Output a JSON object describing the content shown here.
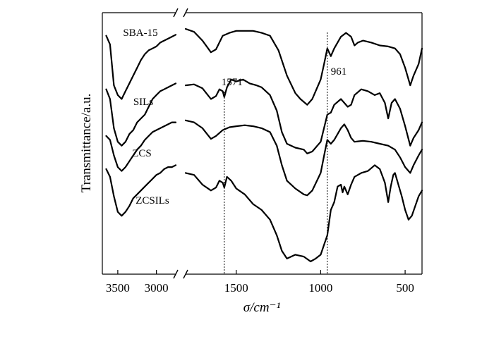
{
  "chart_data": {
    "type": "line",
    "title": "",
    "xlabel": "σ/cm⁻¹",
    "ylabel": "Transmittance/a.u.",
    "x_reversed": true,
    "x_axis_break": true,
    "yticks_shown": false,
    "grid": false,
    "legend": "none (series labelled inline)",
    "x_segments": [
      {
        "range": [
          3700,
          2750
        ],
        "ticks": [
          "3500",
          "3000"
        ]
      },
      {
        "range": [
          1800,
          400
        ],
        "ticks": [
          "1500",
          "1000",
          "500"
        ]
      }
    ],
    "annotations": [
      {
        "text": "1571",
        "x": 1571
      },
      {
        "text": "961",
        "x": 961
      }
    ],
    "series": [
      {
        "name": "SBA-15",
        "points": [
          [
            3650,
            0.925
          ],
          [
            3600,
            0.88
          ],
          [
            3550,
            0.67
          ],
          [
            3500,
            0.62
          ],
          [
            3450,
            0.6
          ],
          [
            3400,
            0.64
          ],
          [
            3350,
            0.68
          ],
          [
            3300,
            0.72
          ],
          [
            3250,
            0.76
          ],
          [
            3200,
            0.8
          ],
          [
            3150,
            0.83
          ],
          [
            3100,
            0.85
          ],
          [
            3050,
            0.86
          ],
          [
            3000,
            0.87
          ],
          [
            2950,
            0.89
          ],
          [
            2900,
            0.9
          ],
          [
            2850,
            0.91
          ],
          [
            2800,
            0.92
          ],
          [
            2750,
            0.93
          ],
          [
            1800,
            0.96
          ],
          [
            1750,
            0.945
          ],
          [
            1700,
            0.9
          ],
          [
            1650,
            0.84
          ],
          [
            1620,
            0.855
          ],
          [
            1580,
            0.925
          ],
          [
            1540,
            0.94
          ],
          [
            1500,
            0.95
          ],
          [
            1450,
            0.95
          ],
          [
            1400,
            0.95
          ],
          [
            1350,
            0.94
          ],
          [
            1300,
            0.925
          ],
          [
            1250,
            0.85
          ],
          [
            1200,
            0.72
          ],
          [
            1150,
            0.63
          ],
          [
            1120,
            0.6
          ],
          [
            1080,
            0.57
          ],
          [
            1050,
            0.6
          ],
          [
            1000,
            0.7
          ],
          [
            980,
            0.78
          ],
          [
            961,
            0.86
          ],
          [
            940,
            0.82
          ],
          [
            920,
            0.86
          ],
          [
            880,
            0.92
          ],
          [
            850,
            0.94
          ],
          [
            820,
            0.92
          ],
          [
            800,
            0.875
          ],
          [
            780,
            0.89
          ],
          [
            750,
            0.9
          ],
          [
            700,
            0.89
          ],
          [
            650,
            0.875
          ],
          [
            600,
            0.87
          ],
          [
            560,
            0.86
          ],
          [
            530,
            0.83
          ],
          [
            500,
            0.76
          ],
          [
            470,
            0.67
          ],
          [
            450,
            0.72
          ],
          [
            420,
            0.78
          ],
          [
            400,
            0.86
          ]
        ]
      },
      {
        "name": "SILs",
        "points": [
          [
            3650,
            0.65
          ],
          [
            3600,
            0.6
          ],
          [
            3550,
            0.45
          ],
          [
            3500,
            0.38
          ],
          [
            3450,
            0.36
          ],
          [
            3400,
            0.38
          ],
          [
            3350,
            0.42
          ],
          [
            3300,
            0.44
          ],
          [
            3250,
            0.48
          ],
          [
            3200,
            0.5
          ],
          [
            3150,
            0.52
          ],
          [
            3100,
            0.56
          ],
          [
            3050,
            0.6
          ],
          [
            3000,
            0.62
          ],
          [
            2950,
            0.64
          ],
          [
            2900,
            0.65
          ],
          [
            2850,
            0.66
          ],
          [
            2800,
            0.67
          ],
          [
            2750,
            0.68
          ],
          [
            1800,
            0.67
          ],
          [
            1750,
            0.675
          ],
          [
            1700,
            0.655
          ],
          [
            1650,
            0.6
          ],
          [
            1620,
            0.615
          ],
          [
            1600,
            0.65
          ],
          [
            1580,
            0.64
          ],
          [
            1571,
            0.61
          ],
          [
            1555,
            0.66
          ],
          [
            1530,
            0.7
          ],
          [
            1500,
            0.69
          ],
          [
            1460,
            0.7
          ],
          [
            1420,
            0.68
          ],
          [
            1380,
            0.67
          ],
          [
            1350,
            0.66
          ],
          [
            1300,
            0.62
          ],
          [
            1260,
            0.54
          ],
          [
            1230,
            0.43
          ],
          [
            1200,
            0.37
          ],
          [
            1150,
            0.35
          ],
          [
            1100,
            0.34
          ],
          [
            1080,
            0.32
          ],
          [
            1050,
            0.33
          ],
          [
            1000,
            0.38
          ],
          [
            961,
            0.52
          ],
          [
            940,
            0.53
          ],
          [
            920,
            0.57
          ],
          [
            880,
            0.6
          ],
          [
            860,
            0.58
          ],
          [
            840,
            0.56
          ],
          [
            820,
            0.57
          ],
          [
            800,
            0.62
          ],
          [
            760,
            0.65
          ],
          [
            720,
            0.64
          ],
          [
            680,
            0.62
          ],
          [
            650,
            0.63
          ],
          [
            620,
            0.58
          ],
          [
            600,
            0.5
          ],
          [
            580,
            0.58
          ],
          [
            560,
            0.6
          ],
          [
            530,
            0.55
          ],
          [
            500,
            0.46
          ],
          [
            470,
            0.36
          ],
          [
            450,
            0.4
          ],
          [
            420,
            0.44
          ],
          [
            400,
            0.48
          ]
        ]
      },
      {
        "name": "ZCS",
        "points": [
          [
            3650,
            0.41
          ],
          [
            3600,
            0.39
          ],
          [
            3550,
            0.31
          ],
          [
            3500,
            0.25
          ],
          [
            3450,
            0.23
          ],
          [
            3400,
            0.25
          ],
          [
            3350,
            0.28
          ],
          [
            3300,
            0.31
          ],
          [
            3250,
            0.34
          ],
          [
            3200,
            0.36
          ],
          [
            3150,
            0.39
          ],
          [
            3100,
            0.41
          ],
          [
            3050,
            0.43
          ],
          [
            3000,
            0.44
          ],
          [
            2950,
            0.45
          ],
          [
            2900,
            0.46
          ],
          [
            2850,
            0.47
          ],
          [
            2800,
            0.48
          ],
          [
            2750,
            0.48
          ],
          [
            1800,
            0.49
          ],
          [
            1750,
            0.48
          ],
          [
            1700,
            0.45
          ],
          [
            1650,
            0.395
          ],
          [
            1620,
            0.41
          ],
          [
            1580,
            0.44
          ],
          [
            1540,
            0.455
          ],
          [
            1500,
            0.46
          ],
          [
            1450,
            0.465
          ],
          [
            1400,
            0.46
          ],
          [
            1350,
            0.45
          ],
          [
            1300,
            0.43
          ],
          [
            1260,
            0.36
          ],
          [
            1230,
            0.26
          ],
          [
            1200,
            0.18
          ],
          [
            1150,
            0.14
          ],
          [
            1100,
            0.11
          ],
          [
            1080,
            0.105
          ],
          [
            1050,
            0.13
          ],
          [
            1000,
            0.22
          ],
          [
            975,
            0.33
          ],
          [
            961,
            0.39
          ],
          [
            940,
            0.37
          ],
          [
            920,
            0.39
          ],
          [
            880,
            0.45
          ],
          [
            860,
            0.47
          ],
          [
            840,
            0.44
          ],
          [
            820,
            0.4
          ],
          [
            800,
            0.38
          ],
          [
            750,
            0.385
          ],
          [
            700,
            0.38
          ],
          [
            650,
            0.37
          ],
          [
            600,
            0.36
          ],
          [
            560,
            0.34
          ],
          [
            530,
            0.3
          ],
          [
            500,
            0.25
          ],
          [
            470,
            0.22
          ],
          [
            450,
            0.26
          ],
          [
            420,
            0.31
          ],
          [
            400,
            0.34
          ]
        ]
      },
      {
        "name": "ZCSILs",
        "points": [
          [
            3650,
            0.24
          ],
          [
            3600,
            0.2
          ],
          [
            3550,
            0.1
          ],
          [
            3500,
            0.02
          ],
          [
            3450,
            0.0
          ],
          [
            3400,
            0.02
          ],
          [
            3350,
            0.05
          ],
          [
            3300,
            0.09
          ],
          [
            3250,
            0.11
          ],
          [
            3200,
            0.13
          ],
          [
            3150,
            0.15
          ],
          [
            3100,
            0.17
          ],
          [
            3050,
            0.19
          ],
          [
            3000,
            0.21
          ],
          [
            2950,
            0.22
          ],
          [
            2900,
            0.24
          ],
          [
            2850,
            0.25
          ],
          [
            2800,
            0.25
          ],
          [
            2750,
            0.26
          ],
          [
            1800,
            0.22
          ],
          [
            1750,
            0.21
          ],
          [
            1700,
            0.16
          ],
          [
            1650,
            0.13
          ],
          [
            1620,
            0.145
          ],
          [
            1600,
            0.18
          ],
          [
            1580,
            0.17
          ],
          [
            1571,
            0.145
          ],
          [
            1555,
            0.2
          ],
          [
            1530,
            0.18
          ],
          [
            1500,
            0.14
          ],
          [
            1450,
            0.11
          ],
          [
            1400,
            0.06
          ],
          [
            1350,
            0.03
          ],
          [
            1300,
            -0.02
          ],
          [
            1260,
            -0.1
          ],
          [
            1230,
            -0.18
          ],
          [
            1200,
            -0.22
          ],
          [
            1150,
            -0.2
          ],
          [
            1100,
            -0.21
          ],
          [
            1060,
            -0.235
          ],
          [
            1030,
            -0.22
          ],
          [
            1000,
            -0.2
          ],
          [
            961,
            -0.1
          ],
          [
            940,
            0.03
          ],
          [
            920,
            0.07
          ],
          [
            900,
            0.15
          ],
          [
            880,
            0.16
          ],
          [
            870,
            0.12
          ],
          [
            860,
            0.15
          ],
          [
            840,
            0.11
          ],
          [
            820,
            0.16
          ],
          [
            800,
            0.2
          ],
          [
            780,
            0.21
          ],
          [
            760,
            0.22
          ],
          [
            720,
            0.23
          ],
          [
            680,
            0.26
          ],
          [
            650,
            0.24
          ],
          [
            620,
            0.17
          ],
          [
            600,
            0.07
          ],
          [
            585,
            0.15
          ],
          [
            570,
            0.21
          ],
          [
            560,
            0.22
          ],
          [
            540,
            0.16
          ],
          [
            520,
            0.1
          ],
          [
            500,
            0.03
          ],
          [
            480,
            -0.02
          ],
          [
            460,
            0.0
          ],
          [
            440,
            0.05
          ],
          [
            420,
            0.1
          ],
          [
            400,
            0.13
          ]
        ]
      }
    ]
  }
}
